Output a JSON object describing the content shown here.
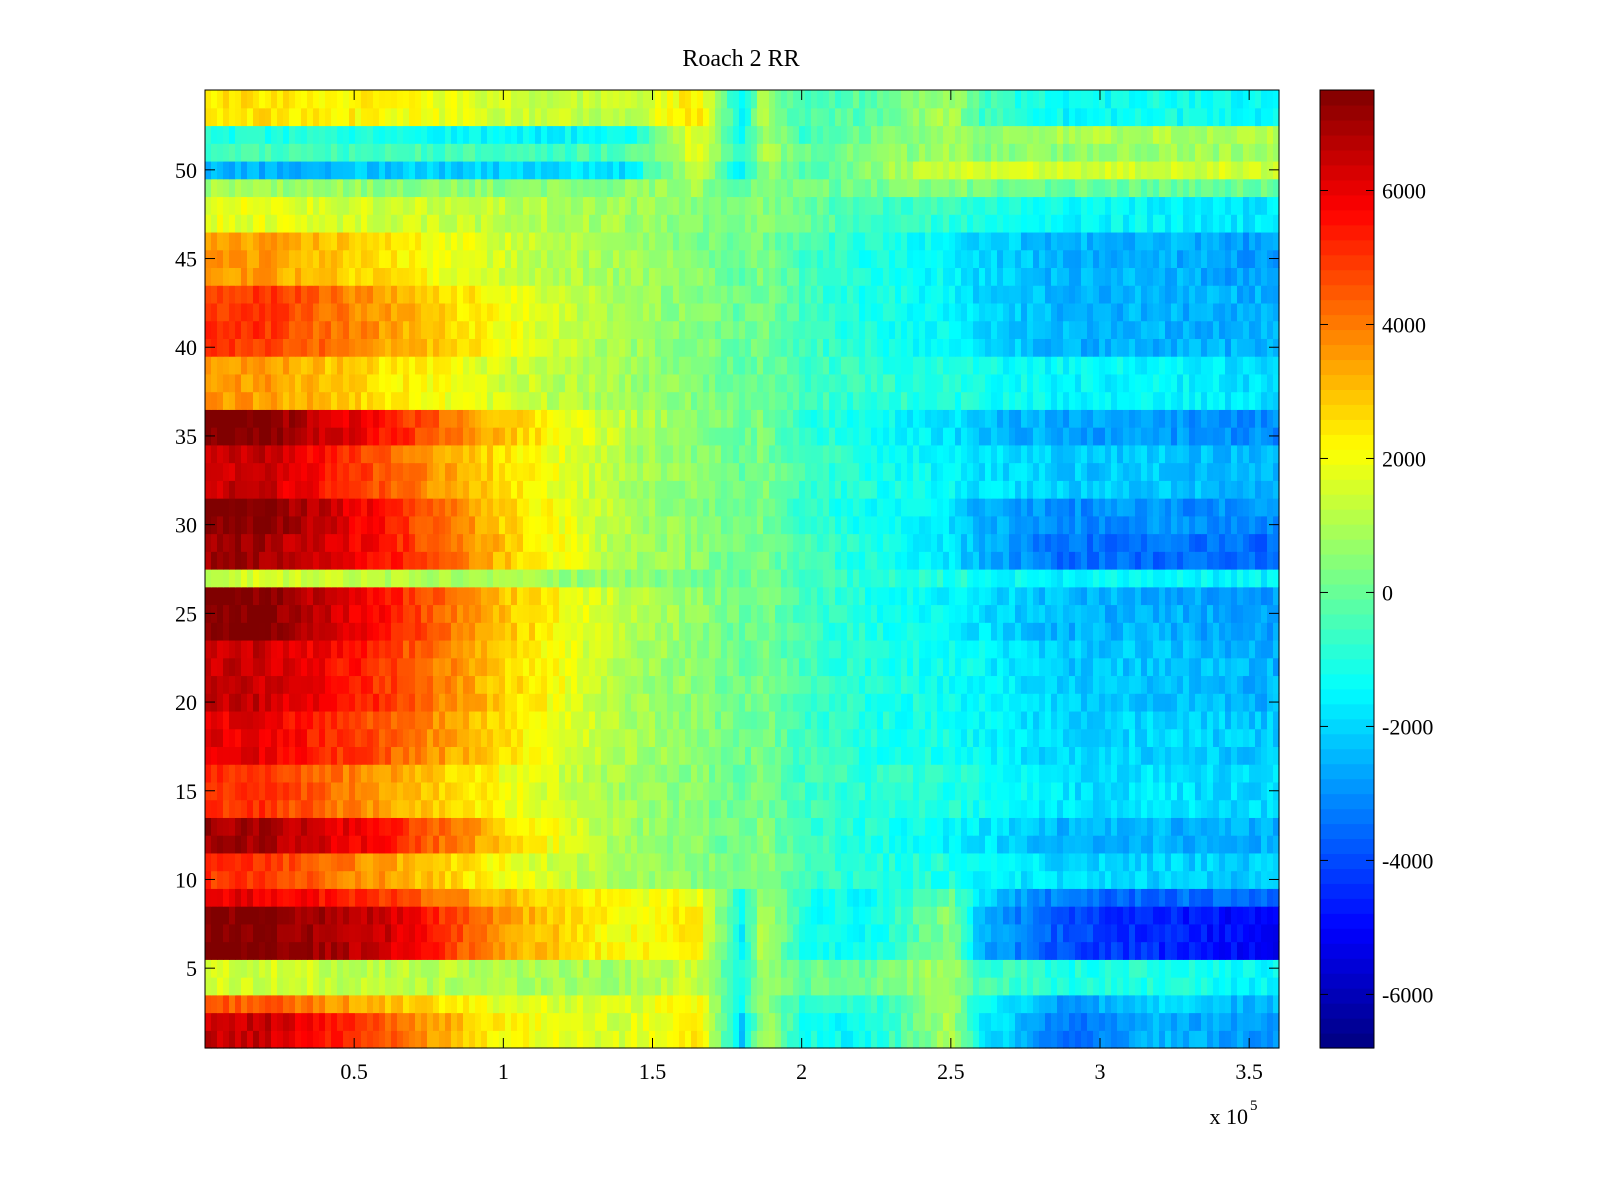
{
  "chart_data": {
    "type": "heatmap",
    "title": "Roach 2 RR",
    "xlabel": "",
    "ylabel": "",
    "x_exponent_label": "x 10",
    "x_exponent_power": "5",
    "xlim": [
      0,
      3.6
    ],
    "ylim": [
      0.5,
      54.5
    ],
    "x_ticks": [
      0.5,
      1,
      1.5,
      2,
      2.5,
      3,
      3.5
    ],
    "x_tick_labels": [
      "0.5",
      "1",
      "1.5",
      "2",
      "2.5",
      "3",
      "3.5"
    ],
    "y_ticks": [
      5,
      10,
      15,
      20,
      25,
      30,
      35,
      40,
      45,
      50
    ],
    "y_tick_labels": [
      "5",
      "10",
      "15",
      "20",
      "25",
      "30",
      "35",
      "40",
      "45",
      "50"
    ],
    "rows": 54,
    "colorbar": {
      "colormap": "jet",
      "clim": [
        -6800,
        7500
      ],
      "ticks": [
        6000,
        4000,
        2000,
        0,
        -2000,
        -4000,
        -6000
      ],
      "tick_labels": [
        "6000",
        "4000",
        "2000",
        "0",
        "-2000",
        "-4000",
        "-6000"
      ]
    },
    "x_columns": [
      0.2,
      0.6,
      1.0,
      1.4,
      1.65,
      1.8,
      1.87,
      2.0,
      2.2,
      2.5,
      2.6,
      2.9,
      3.2,
      3.5
    ],
    "row_profiles": [
      {
        "rows": [
          1,
          2
        ],
        "values": [
          6500,
          4500,
          2200,
          1500,
          2500,
          -2000,
          1000,
          -1000,
          -1500,
          1000,
          -1500,
          -3500,
          -2500,
          -2800
        ]
      },
      {
        "rows": [
          3
        ],
        "values": [
          4500,
          3000,
          1800,
          1500,
          2200,
          -1500,
          1000,
          -1000,
          -1000,
          800,
          -1200,
          -3000,
          -2000,
          -2500
        ]
      },
      {
        "rows": [
          4,
          5
        ],
        "values": [
          1500,
          1200,
          1000,
          800,
          1500,
          -1000,
          800,
          0,
          0,
          1000,
          -500,
          -1000,
          -1000,
          -1500
        ]
      },
      {
        "rows": [
          6,
          7,
          8
        ],
        "values": [
          7500,
          6500,
          3500,
          2000,
          2500,
          -1500,
          1200,
          -1000,
          -1500,
          500,
          -2500,
          -4000,
          -4500,
          -5000
        ]
      },
      {
        "rows": [
          9
        ],
        "values": [
          6000,
          5000,
          3000,
          2000,
          2000,
          -1000,
          1000,
          -1000,
          -1500,
          0,
          -2000,
          -3500,
          -3500,
          -3500
        ]
      },
      {
        "rows": [
          10,
          11
        ],
        "values": [
          5000,
          3500,
          2000,
          800,
          500,
          0,
          500,
          -500,
          -1000,
          -1000,
          -1500,
          -2000,
          -2000,
          -2200
        ]
      },
      {
        "rows": [
          12,
          13
        ],
        "values": [
          7000,
          5500,
          2800,
          800,
          400,
          0,
          400,
          -500,
          -1000,
          -1500,
          -1800,
          -2500,
          -2500,
          -2500
        ]
      },
      {
        "rows": [
          14,
          15,
          16
        ],
        "values": [
          5000,
          3500,
          2000,
          800,
          500,
          0,
          300,
          -500,
          -800,
          -1000,
          -1200,
          -1800,
          -1800,
          -2000
        ]
      },
      {
        "rows": [
          17,
          18,
          19
        ],
        "values": [
          6000,
          4500,
          2500,
          1000,
          500,
          0,
          300,
          -500,
          -1000,
          -1200,
          -1500,
          -2000,
          -2000,
          -2200
        ]
      },
      {
        "rows": [
          20,
          21,
          22,
          23
        ],
        "values": [
          6500,
          5000,
          2800,
          1000,
          500,
          0,
          300,
          -500,
          -1000,
          -1200,
          -1500,
          -2200,
          -2200,
          -2500
        ]
      },
      {
        "rows": [
          24,
          25,
          26
        ],
        "values": [
          7500,
          5500,
          3000,
          1200,
          600,
          0,
          300,
          -500,
          -1000,
          -1500,
          -1800,
          -2500,
          -2500,
          -2800
        ]
      },
      {
        "rows": [
          27
        ],
        "values": [
          1500,
          1200,
          800,
          500,
          300,
          0,
          200,
          -500,
          -800,
          -1000,
          -1200,
          -1500,
          -1500,
          -1500
        ]
      },
      {
        "rows": [
          28,
          29
        ],
        "values": [
          7000,
          5500,
          3000,
          1000,
          500,
          0,
          300,
          -500,
          -1000,
          -1800,
          -2500,
          -3500,
          -3500,
          -3500
        ]
      },
      {
        "rows": [
          30,
          31
        ],
        "values": [
          7500,
          5500,
          2800,
          1000,
          500,
          0,
          300,
          -800,
          -1200,
          -1800,
          -2500,
          -3000,
          -3000,
          -3000
        ]
      },
      {
        "rows": [
          32,
          33,
          34
        ],
        "values": [
          6500,
          4500,
          2500,
          1000,
          500,
          0,
          300,
          -500,
          -1000,
          -1500,
          -1800,
          -2200,
          -2200,
          -2500
        ]
      },
      {
        "rows": [
          35,
          36
        ],
        "values": [
          7500,
          5500,
          3000,
          1200,
          600,
          0,
          300,
          -800,
          -1200,
          -1800,
          -2200,
          -2800,
          -2800,
          -3000
        ]
      },
      {
        "rows": [
          37,
          38,
          39
        ],
        "values": [
          3500,
          2500,
          1500,
          800,
          400,
          0,
          200,
          -500,
          -800,
          -1000,
          -1200,
          -1500,
          -1500,
          -1800
        ]
      },
      {
        "rows": [
          40,
          41,
          42,
          43
        ],
        "values": [
          5000,
          3500,
          2000,
          800,
          400,
          0,
          300,
          -500,
          -1000,
          -1500,
          -2000,
          -2500,
          -2500,
          -2500
        ]
      },
      {
        "rows": [
          44,
          45,
          46
        ],
        "values": [
          3500,
          2500,
          1500,
          800,
          400,
          0,
          300,
          -500,
          -1000,
          -1500,
          -2000,
          -2500,
          -2500,
          -2800
        ]
      },
      {
        "rows": [
          47,
          48
        ],
        "values": [
          1800,
          1500,
          1200,
          800,
          500,
          0,
          500,
          0,
          -500,
          -800,
          -1000,
          -1500,
          -1500,
          -1800
        ]
      },
      {
        "rows": [
          49
        ],
        "values": [
          800,
          600,
          500,
          500,
          800,
          -200,
          800,
          200,
          0,
          500,
          200,
          0,
          0,
          0
        ]
      },
      {
        "rows": [
          50
        ],
        "values": [
          -2500,
          -2200,
          -2000,
          -1800,
          1500,
          -1500,
          800,
          -500,
          500,
          1500,
          1500,
          1500,
          1500,
          1500
        ]
      },
      {
        "rows": [
          51
        ],
        "values": [
          -500,
          -500,
          -500,
          -500,
          1800,
          -1000,
          1000,
          0,
          200,
          800,
          500,
          500,
          800,
          800
        ]
      },
      {
        "rows": [
          52
        ],
        "values": [
          -1000,
          -1200,
          -1500,
          -1500,
          2000,
          -1500,
          1000,
          -500,
          0,
          800,
          500,
          1000,
          1000,
          1000
        ]
      },
      {
        "rows": [
          53,
          54
        ],
        "values": [
          2500,
          2200,
          1500,
          1200,
          2500,
          -1500,
          1000,
          -500,
          -200,
          1000,
          -500,
          -1500,
          -1200,
          -1500
        ]
      }
    ]
  }
}
